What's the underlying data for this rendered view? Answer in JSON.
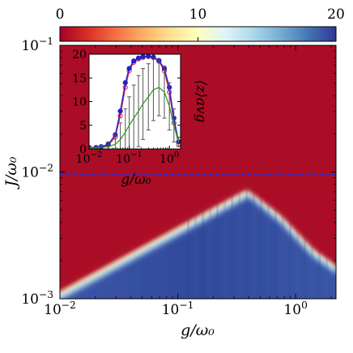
{
  "chart_data": [
    {
      "type": "heatmap",
      "xlabel": "g/ω₀",
      "ylabel": "J/ω₀",
      "x_scale": "log",
      "y_scale": "log",
      "xlim": [
        0.01,
        2.2
      ],
      "ylim": [
        0.001,
        0.1
      ],
      "x_ticks": [
        {
          "value": 0.01,
          "label_base": "10",
          "label_exp": "−2"
        },
        {
          "value": 0.1,
          "label_base": "10",
          "label_exp": "−1"
        },
        {
          "value": 1,
          "label_base": "10",
          "label_exp": "0"
        }
      ],
      "y_ticks": [
        {
          "value": 0.001,
          "label_base": "10",
          "label_exp": "−3"
        },
        {
          "value": 0.01,
          "label_base": "10",
          "label_exp": "−2"
        },
        {
          "value": 0.1,
          "label_base": "10",
          "label_exp": "−1"
        }
      ],
      "colorbar": {
        "range": [
          0,
          20
        ],
        "ticks": [
          0,
          10,
          20
        ],
        "tick_labels": [
          "0",
          "10",
          "20"
        ],
        "colormap": [
          "#a50026",
          "#d73027",
          "#f46d43",
          "#fdae61",
          "#fee090",
          "#ffffbf",
          "#e0f3f8",
          "#abd9e9",
          "#74add1",
          "#4575b4",
          "#313695"
        ]
      },
      "background_value": 0,
      "ordered_region": {
        "value": 20,
        "left_boundary": [
          [
            0.01,
            0.00105
          ],
          [
            0.4,
            0.0068
          ]
        ],
        "peak": [
          0.4,
          0.0068
        ],
        "right_boundary": [
          [
            0.4,
            0.0068
          ],
          [
            0.75,
            0.0042
          ],
          [
            1.4,
            0.0023
          ],
          [
            2.2,
            0.0017
          ]
        ]
      },
      "reference_line": {
        "y": 0.0095,
        "style": "dashed",
        "color": "#1f2fe0"
      }
    },
    {
      "type": "line",
      "xlabel": "g/ω₀",
      "ylabel": "⟨z⟩avg",
      "x_scale": "log",
      "xlim": [
        0.01,
        1.9
      ],
      "ylim": [
        0,
        20
      ],
      "x_ticks": [
        {
          "value": 0.01,
          "label_base": "10",
          "label_exp": "−2"
        },
        {
          "value": 0.1,
          "label_base": "10",
          "label_exp": "−1"
        },
        {
          "value": 1,
          "label_base": "10",
          "label_exp": "0"
        }
      ],
      "y_ticks": [
        0,
        5,
        10,
        15,
        20
      ],
      "series": [
        {
          "color": "#e0204a",
          "marker": "open-circle",
          "x": [
            0.01,
            0.015,
            0.02,
            0.03,
            0.045,
            0.06,
            0.08,
            0.1,
            0.13,
            0.17,
            0.22,
            0.3,
            0.4,
            0.55,
            0.75,
            1.0,
            1.3,
            1.7
          ],
          "y": [
            0.3,
            0.3,
            0.4,
            0.8,
            2.5,
            7,
            13,
            16.5,
            18.3,
            19,
            19.3,
            19.5,
            19.3,
            18.5,
            16.5,
            12,
            5.5,
            1
          ]
        },
        {
          "color": "#2020d0",
          "marker": "filled-circle",
          "x": [
            0.01,
            0.015,
            0.02,
            0.03,
            0.045,
            0.06,
            0.08,
            0.1,
            0.13,
            0.17,
            0.22,
            0.3,
            0.4,
            0.55,
            0.75,
            1.0,
            1.3,
            1.7
          ],
          "y": [
            0.3,
            0.3,
            0.5,
            1,
            3,
            8,
            14,
            17,
            18.6,
            19.2,
            19.5,
            19.6,
            19.4,
            18.7,
            17,
            13,
            6.5,
            1.5
          ]
        },
        {
          "color": "#2a9d2a",
          "marker": "none",
          "error_bars": true,
          "x": [
            0.01,
            0.015,
            0.02,
            0.03,
            0.045,
            0.06,
            0.08,
            0.1,
            0.13,
            0.17,
            0.22,
            0.3,
            0.4,
            0.55,
            0.75,
            1.0,
            1.3,
            1.7
          ],
          "y": [
            0.2,
            0.2,
            0.3,
            0.5,
            1,
            2,
            3.5,
            5,
            6.5,
            8,
            9.5,
            11,
            12.5,
            13,
            12,
            9,
            5,
            1.5
          ],
          "err": [
            0.2,
            0.3,
            0.5,
            1,
            2,
            3.5,
            5,
            6,
            7,
            7.5,
            7.5,
            7,
            6.5,
            6,
            5.5,
            5,
            3.5,
            1
          ]
        }
      ]
    }
  ]
}
